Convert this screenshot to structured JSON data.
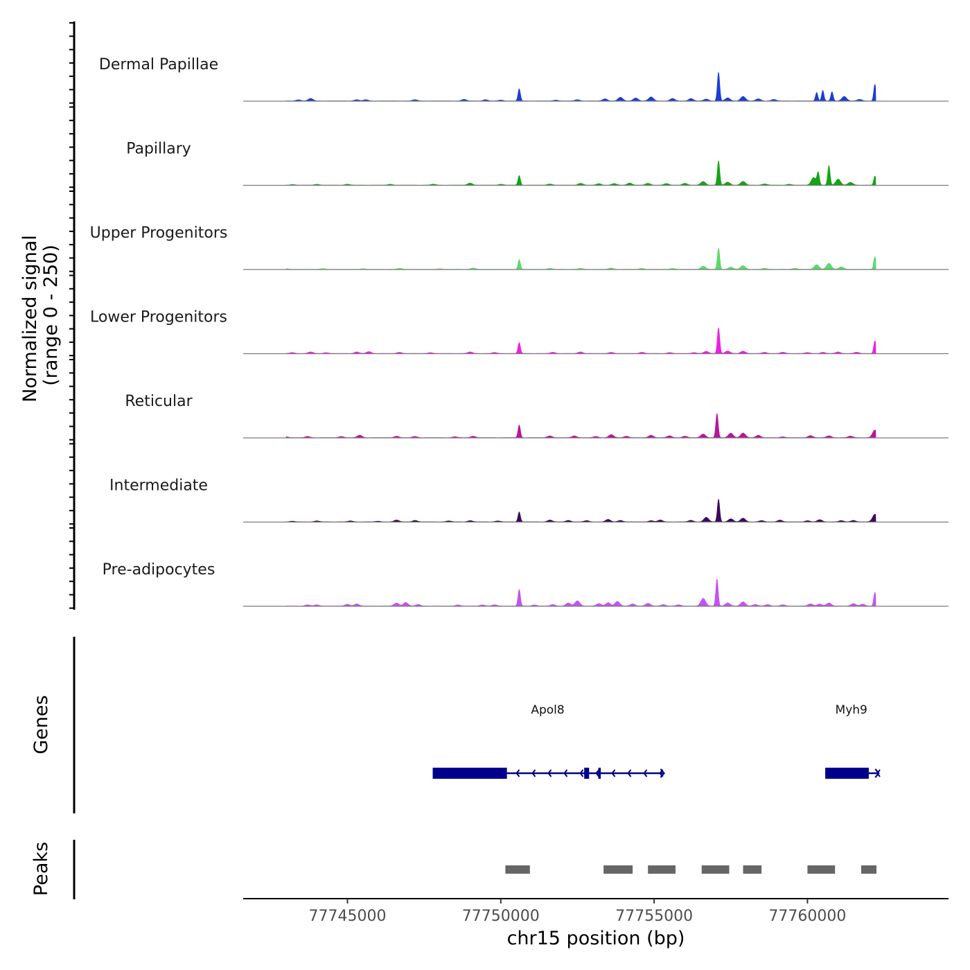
{
  "chart_data": {
    "type": "area",
    "title": "",
    "xlabel": "chr15 position (bp)",
    "ylabel": "Normalized signal",
    "ylabel_sub": "(range 0 - 250)",
    "ylim": [
      0,
      250
    ],
    "xlim": [
      77741600,
      77764600
    ],
    "x_ticks": [
      77745000,
      77750000,
      77755000,
      77760000
    ],
    "x_tick_labels": [
      "77745000",
      "77750000",
      "77755000",
      "77760000"
    ],
    "tracks": [
      {
        "name": "Dermal Papillae",
        "color": "#1a3ed6",
        "peaks": [
          [
            77743400,
            4
          ],
          [
            77743800,
            8
          ],
          [
            77745300,
            4
          ],
          [
            77745600,
            4
          ],
          [
            77747200,
            4
          ],
          [
            77748800,
            5
          ],
          [
            77749500,
            4
          ],
          [
            77750000,
            3
          ],
          [
            77750600,
            40
          ],
          [
            77751800,
            3
          ],
          [
            77752500,
            4
          ],
          [
            77753400,
            7
          ],
          [
            77753900,
            12
          ],
          [
            77754400,
            10
          ],
          [
            77754900,
            13
          ],
          [
            77755600,
            8
          ],
          [
            77756200,
            8
          ],
          [
            77756700,
            6
          ],
          [
            77757100,
            95
          ],
          [
            77757400,
            10
          ],
          [
            77757900,
            15
          ],
          [
            77758400,
            7
          ],
          [
            77758900,
            5
          ],
          [
            77760300,
            28
          ],
          [
            77760500,
            35
          ],
          [
            77760800,
            30
          ],
          [
            77761200,
            15
          ],
          [
            77761700,
            5
          ],
          [
            77762200,
            55
          ]
        ]
      },
      {
        "name": "Papillary",
        "color": "#14a514",
        "peaks": [
          [
            77743200,
            2
          ],
          [
            77744000,
            3
          ],
          [
            77745000,
            3
          ],
          [
            77746400,
            3
          ],
          [
            77747800,
            3
          ],
          [
            77749000,
            7
          ],
          [
            77750000,
            3
          ],
          [
            77750600,
            32
          ],
          [
            77751600,
            4
          ],
          [
            77752600,
            6
          ],
          [
            77753200,
            5
          ],
          [
            77753700,
            5
          ],
          [
            77754200,
            7
          ],
          [
            77754800,
            6
          ],
          [
            77755400,
            5
          ],
          [
            77756000,
            6
          ],
          [
            77756600,
            12
          ],
          [
            77757100,
            80
          ],
          [
            77757400,
            10
          ],
          [
            77757900,
            12
          ],
          [
            77758600,
            4
          ],
          [
            77759400,
            3
          ],
          [
            77760200,
            25
          ],
          [
            77760350,
            40
          ],
          [
            77760700,
            65
          ],
          [
            77761000,
            20
          ],
          [
            77761400,
            9
          ],
          [
            77762200,
            30
          ]
        ]
      },
      {
        "name": "Upper Progenitors",
        "color": "#5ad96d",
        "peaks": [
          [
            77743000,
            2
          ],
          [
            77744200,
            2
          ],
          [
            77745500,
            2
          ],
          [
            77746700,
            3
          ],
          [
            77748000,
            2
          ],
          [
            77749100,
            4
          ],
          [
            77750600,
            32
          ],
          [
            77751600,
            3
          ],
          [
            77752600,
            3
          ],
          [
            77753600,
            4
          ],
          [
            77754600,
            3
          ],
          [
            77755600,
            3
          ],
          [
            77756600,
            10
          ],
          [
            77757100,
            70
          ],
          [
            77757500,
            7
          ],
          [
            77757900,
            12
          ],
          [
            77758600,
            3
          ],
          [
            77759600,
            3
          ],
          [
            77760300,
            15
          ],
          [
            77760700,
            20
          ],
          [
            77761100,
            8
          ],
          [
            77762200,
            42
          ]
        ]
      },
      {
        "name": "Lower Progenitors",
        "color": "#ee1ee8",
        "peaks": [
          [
            77743200,
            3
          ],
          [
            77743800,
            5
          ],
          [
            77744300,
            3
          ],
          [
            77745300,
            5
          ],
          [
            77745700,
            6
          ],
          [
            77746700,
            4
          ],
          [
            77747700,
            3
          ],
          [
            77749000,
            5
          ],
          [
            77749800,
            3
          ],
          [
            77750600,
            36
          ],
          [
            77751700,
            4
          ],
          [
            77752600,
            5
          ],
          [
            77753600,
            4
          ],
          [
            77754600,
            4
          ],
          [
            77755500,
            3
          ],
          [
            77756300,
            3
          ],
          [
            77756700,
            7
          ],
          [
            77757100,
            85
          ],
          [
            77757400,
            8
          ],
          [
            77757900,
            8
          ],
          [
            77758600,
            4
          ],
          [
            77759200,
            4
          ],
          [
            77760000,
            3
          ],
          [
            77760500,
            4
          ],
          [
            77761000,
            5
          ],
          [
            77761600,
            4
          ],
          [
            77762200,
            42
          ]
        ]
      },
      {
        "name": "Reticular",
        "color": "#b8149d",
        "peaks": [
          [
            77743000,
            3
          ],
          [
            77743700,
            4
          ],
          [
            77744800,
            4
          ],
          [
            77745400,
            8
          ],
          [
            77746600,
            5
          ],
          [
            77747200,
            4
          ],
          [
            77748500,
            3
          ],
          [
            77749100,
            5
          ],
          [
            77750600,
            42
          ],
          [
            77751600,
            6
          ],
          [
            77752400,
            6
          ],
          [
            77753100,
            4
          ],
          [
            77753600,
            10
          ],
          [
            77754100,
            5
          ],
          [
            77754900,
            8
          ],
          [
            77755500,
            6
          ],
          [
            77756000,
            5
          ],
          [
            77756600,
            12
          ],
          [
            77757050,
            80
          ],
          [
            77757500,
            15
          ],
          [
            77757900,
            15
          ],
          [
            77758400,
            8
          ],
          [
            77759200,
            3
          ],
          [
            77760100,
            7
          ],
          [
            77760700,
            6
          ],
          [
            77761400,
            5
          ],
          [
            77762200,
            25
          ]
        ]
      },
      {
        "name": "Intermediate",
        "color": "#3b0a5f",
        "peaks": [
          [
            77743200,
            2
          ],
          [
            77744000,
            3
          ],
          [
            77745100,
            3
          ],
          [
            77746000,
            2
          ],
          [
            77746600,
            6
          ],
          [
            77747200,
            5
          ],
          [
            77748300,
            3
          ],
          [
            77749000,
            4
          ],
          [
            77749900,
            3
          ],
          [
            77750600,
            33
          ],
          [
            77751600,
            6
          ],
          [
            77752200,
            5
          ],
          [
            77752800,
            4
          ],
          [
            77753500,
            8
          ],
          [
            77753900,
            5
          ],
          [
            77754900,
            4
          ],
          [
            77755200,
            6
          ],
          [
            77756200,
            5
          ],
          [
            77756700,
            15
          ],
          [
            77757100,
            75
          ],
          [
            77757500,
            10
          ],
          [
            77757900,
            12
          ],
          [
            77758500,
            4
          ],
          [
            77759100,
            6
          ],
          [
            77760000,
            4
          ],
          [
            77760400,
            7
          ],
          [
            77761100,
            4
          ],
          [
            77761500,
            5
          ],
          [
            77762200,
            25
          ]
        ]
      },
      {
        "name": "Pre-adipocytes",
        "color": "#c552f0",
        "peaks": [
          [
            77743700,
            4
          ],
          [
            77744000,
            4
          ],
          [
            77745000,
            6
          ],
          [
            77745300,
            7
          ],
          [
            77746600,
            10
          ],
          [
            77746900,
            12
          ],
          [
            77747300,
            5
          ],
          [
            77748600,
            4
          ],
          [
            77749400,
            4
          ],
          [
            77749800,
            4
          ],
          [
            77750600,
            55
          ],
          [
            77751100,
            4
          ],
          [
            77751700,
            5
          ],
          [
            77752200,
            10
          ],
          [
            77752500,
            17
          ],
          [
            77753200,
            8
          ],
          [
            77753500,
            11
          ],
          [
            77753800,
            15
          ],
          [
            77754300,
            7
          ],
          [
            77754800,
            9
          ],
          [
            77755300,
            5
          ],
          [
            77755800,
            4
          ],
          [
            77756600,
            25
          ],
          [
            77757050,
            90
          ],
          [
            77757400,
            10
          ],
          [
            77757900,
            14
          ],
          [
            77758300,
            5
          ],
          [
            77758700,
            5
          ],
          [
            77759200,
            4
          ],
          [
            77760100,
            7
          ],
          [
            77760400,
            7
          ],
          [
            77760700,
            10
          ],
          [
            77761500,
            8
          ],
          [
            77761800,
            6
          ],
          [
            77762200,
            45
          ]
        ]
      }
    ],
    "genes_label": "Genes",
    "genes": [
      {
        "name": "Apol8",
        "start": 77747780,
        "end": 77755280,
        "strand": "-",
        "exons": [
          [
            77747780,
            77750200
          ],
          [
            77752720,
            77752880
          ],
          [
            77753180,
            77753260
          ]
        ]
      },
      {
        "name": "Myh9",
        "start": 77760580,
        "end": 77762280,
        "strand": "-",
        "exons": [
          [
            77760580,
            77762000
          ]
        ]
      }
    ],
    "peaks_label": "Peaks",
    "peak_regions": [
      [
        77750150,
        77750950
      ],
      [
        77753350,
        77754300
      ],
      [
        77754800,
        77755700
      ],
      [
        77756550,
        77757450
      ],
      [
        77757900,
        77758500
      ],
      [
        77760000,
        77760900
      ],
      [
        77761750,
        77762250
      ]
    ]
  }
}
